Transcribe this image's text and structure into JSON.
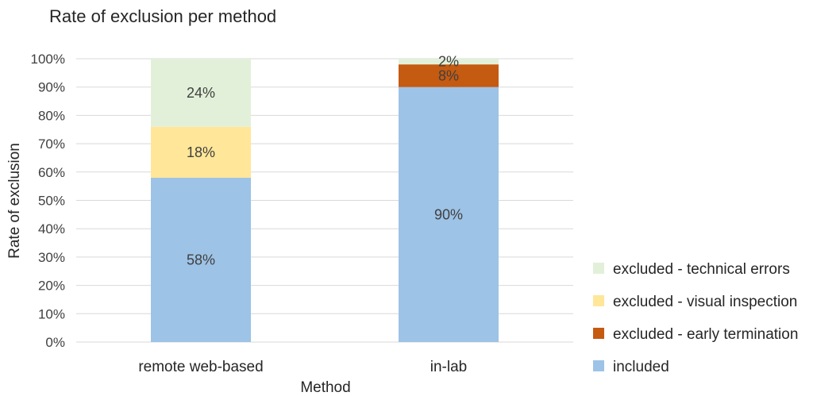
{
  "chart_data": {
    "type": "bar",
    "stacked": true,
    "title": "Rate of exclusion per method",
    "xlabel": "Method",
    "ylabel": "Rate of exclusion",
    "categories": [
      "remote web-based",
      "in-lab"
    ],
    "ylim": [
      0,
      100
    ],
    "yticks": [
      "0%",
      "10%",
      "20%",
      "30%",
      "40%",
      "50%",
      "60%",
      "70%",
      "80%",
      "90%",
      "100%"
    ],
    "grid": true,
    "legend_position": "right",
    "series": [
      {
        "name": "included",
        "color": "#9dc3e6",
        "values": [
          58,
          90
        ],
        "labels": [
          "58%",
          "90%"
        ]
      },
      {
        "name": "excluded - early termination",
        "color": "#c55a11",
        "values": [
          0,
          8
        ],
        "labels": [
          "",
          "8%"
        ]
      },
      {
        "name": "excluded - visual inspection",
        "color": "#ffe699",
        "values": [
          18,
          0
        ],
        "labels": [
          "18%",
          ""
        ]
      },
      {
        "name": "excluded - technical errors",
        "color": "#e2f0d9",
        "values": [
          24,
          2
        ],
        "labels": [
          "24%",
          "2%"
        ]
      }
    ]
  }
}
